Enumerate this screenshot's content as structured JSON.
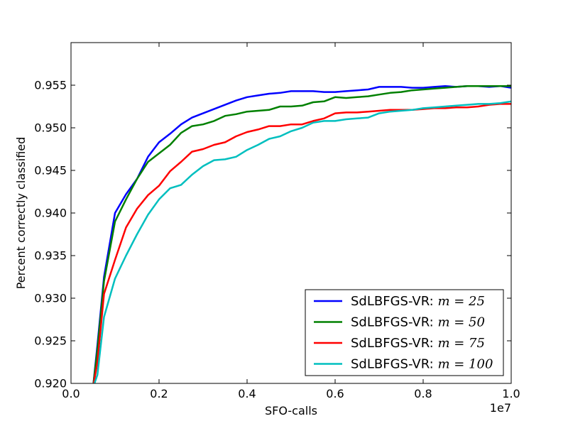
{
  "chart_data": {
    "type": "line",
    "xlabel": "SFO-calls",
    "ylabel": "Percent correctly classified",
    "x_offset_text": "1e7",
    "xlim": [
      0.0,
      1.0
    ],
    "ylim": [
      0.92,
      0.96
    ],
    "x_ticks": [
      "0.0",
      "0.2",
      "0.4",
      "0.6",
      "0.8",
      "1.0"
    ],
    "x_tick_values": [
      0.0,
      0.2,
      0.4,
      0.6,
      0.8,
      1.0
    ],
    "y_ticks": [
      "0.920",
      "0.925",
      "0.930",
      "0.935",
      "0.940",
      "0.945",
      "0.950",
      "0.955"
    ],
    "y_tick_values": [
      0.92,
      0.925,
      0.93,
      0.935,
      0.94,
      0.945,
      0.95,
      0.955
    ],
    "grid": false,
    "legend_position": "lower-right",
    "series": [
      {
        "name": "SdLBFGS-VR: m = 25",
        "legend_prefix": "SdLBFGS-VR: ",
        "legend_math": "m = 25",
        "color": "#0000ff",
        "x": [
          0.05,
          0.06,
          0.075,
          0.1,
          0.125,
          0.15,
          0.175,
          0.2,
          0.225,
          0.25,
          0.275,
          0.3,
          0.325,
          0.35,
          0.375,
          0.4,
          0.425,
          0.45,
          0.475,
          0.5,
          0.525,
          0.55,
          0.575,
          0.6,
          0.625,
          0.65,
          0.675,
          0.7,
          0.725,
          0.75,
          0.775,
          0.8,
          0.825,
          0.85,
          0.875,
          0.9,
          0.925,
          0.95,
          0.975,
          1.0
        ],
        "y": [
          0.9195,
          0.9245,
          0.9325,
          0.94,
          0.9422,
          0.944,
          0.9466,
          0.9483,
          0.9493,
          0.9504,
          0.9512,
          0.9517,
          0.9522,
          0.9527,
          0.9532,
          0.9536,
          0.9538,
          0.954,
          0.9541,
          0.9543,
          0.9543,
          0.9543,
          0.9542,
          0.9542,
          0.9543,
          0.9544,
          0.9545,
          0.9548,
          0.9548,
          0.9548,
          0.9547,
          0.9547,
          0.9548,
          0.9549,
          0.9548,
          0.9549,
          0.9549,
          0.9548,
          0.9549,
          0.9547
        ]
      },
      {
        "name": "SdLBFGS-VR: m = 50",
        "legend_prefix": "SdLBFGS-VR: ",
        "legend_math": "m = 50",
        "color": "#008000",
        "x": [
          0.05,
          0.06,
          0.075,
          0.1,
          0.125,
          0.15,
          0.175,
          0.2,
          0.225,
          0.25,
          0.275,
          0.3,
          0.325,
          0.35,
          0.375,
          0.4,
          0.425,
          0.45,
          0.475,
          0.5,
          0.525,
          0.55,
          0.575,
          0.6,
          0.625,
          0.65,
          0.675,
          0.7,
          0.725,
          0.75,
          0.775,
          0.8,
          0.825,
          0.85,
          0.875,
          0.9,
          0.925,
          0.95,
          0.975,
          1.0
        ],
        "y": [
          0.9195,
          0.924,
          0.932,
          0.939,
          0.9416,
          0.944,
          0.946,
          0.947,
          0.948,
          0.9494,
          0.9502,
          0.9504,
          0.9508,
          0.9514,
          0.9516,
          0.9519,
          0.952,
          0.9521,
          0.9525,
          0.9525,
          0.9526,
          0.953,
          0.9531,
          0.9536,
          0.9535,
          0.9536,
          0.9537,
          0.9539,
          0.9541,
          0.9542,
          0.9544,
          0.9545,
          0.9546,
          0.9547,
          0.9548,
          0.9549,
          0.9549,
          0.9549,
          0.9549,
          0.9549
        ]
      },
      {
        "name": "SdLBFGS-VR: m = 75",
        "legend_prefix": "SdLBFGS-VR: ",
        "legend_math": "m = 75",
        "color": "#ff0000",
        "x": [
          0.05,
          0.06,
          0.075,
          0.1,
          0.125,
          0.15,
          0.175,
          0.2,
          0.225,
          0.25,
          0.275,
          0.3,
          0.325,
          0.35,
          0.375,
          0.4,
          0.425,
          0.45,
          0.475,
          0.5,
          0.525,
          0.55,
          0.575,
          0.6,
          0.625,
          0.65,
          0.675,
          0.7,
          0.725,
          0.75,
          0.775,
          0.8,
          0.825,
          0.85,
          0.875,
          0.9,
          0.925,
          0.95,
          0.975,
          1.0
        ],
        "y": [
          0.9195,
          0.9225,
          0.9305,
          0.9345,
          0.9383,
          0.9405,
          0.9421,
          0.9432,
          0.9449,
          0.946,
          0.9472,
          0.9475,
          0.948,
          0.9483,
          0.949,
          0.9495,
          0.9498,
          0.9502,
          0.9502,
          0.9504,
          0.9504,
          0.9508,
          0.9511,
          0.9517,
          0.9518,
          0.9518,
          0.9519,
          0.952,
          0.9521,
          0.9521,
          0.9521,
          0.9522,
          0.9523,
          0.9523,
          0.9524,
          0.9524,
          0.9525,
          0.9527,
          0.9528,
          0.9528
        ]
      },
      {
        "name": "SdLBFGS-VR: m = 100",
        "legend_prefix": "SdLBFGS-VR: ",
        "legend_math": "m = 100",
        "color": "#00bfbf",
        "x": [
          0.05,
          0.06,
          0.075,
          0.1,
          0.125,
          0.15,
          0.175,
          0.2,
          0.225,
          0.25,
          0.275,
          0.3,
          0.325,
          0.35,
          0.375,
          0.4,
          0.425,
          0.45,
          0.475,
          0.5,
          0.525,
          0.55,
          0.575,
          0.6,
          0.625,
          0.65,
          0.675,
          0.7,
          0.725,
          0.75,
          0.775,
          0.8,
          0.825,
          0.85,
          0.875,
          0.9,
          0.925,
          0.95,
          0.975,
          1.0
        ],
        "y": [
          0.9195,
          0.921,
          0.9278,
          0.9323,
          0.935,
          0.9375,
          0.9398,
          0.9416,
          0.9429,
          0.9433,
          0.9445,
          0.9455,
          0.9462,
          0.9463,
          0.9466,
          0.9474,
          0.948,
          0.9487,
          0.949,
          0.9496,
          0.95,
          0.9506,
          0.9508,
          0.9508,
          0.951,
          0.9511,
          0.9512,
          0.9517,
          0.9519,
          0.952,
          0.9521,
          0.9523,
          0.9524,
          0.9525,
          0.9526,
          0.9527,
          0.9528,
          0.9528,
          0.9529,
          0.9531
        ]
      }
    ]
  }
}
